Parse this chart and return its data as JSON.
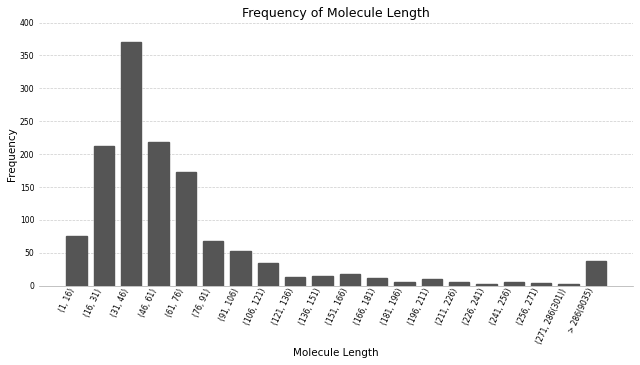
{
  "title": "Frequency of Molecule Length",
  "xlabel": "Molecule Length",
  "ylabel": "Frequency",
  "categories": [
    "(1, 16)",
    "(16, 31)",
    "(31, 46)",
    "(46, 61)",
    "(61, 76)",
    "(76, 91)",
    "(91, 106)",
    "(106, 121)",
    "(121, 136)",
    "(136, 151)",
    "(151, 166)",
    "(166, 181)",
    "(181, 196)",
    "(196, 211)",
    "(211, 226)",
    "(226, 241)",
    "(241, 256)",
    "(256, 271)",
    "(271, 286(301))",
    "> 286(9035)"
  ],
  "values": [
    75,
    213,
    370,
    218,
    173,
    68,
    52,
    35,
    13,
    15,
    18,
    12,
    6,
    10,
    6,
    3,
    6,
    4,
    2,
    38
  ],
  "bar_color": "#555555",
  "ylim": [
    0,
    400
  ],
  "yticks": [
    0,
    50,
    100,
    150,
    200,
    250,
    300,
    350,
    400
  ],
  "title_fontsize": 9,
  "label_fontsize": 7.5,
  "tick_fontsize": 5.5,
  "background_color": "#ffffff",
  "grid_color": "#cccccc",
  "grid_linestyle": "--",
  "grid_linewidth": 0.5
}
